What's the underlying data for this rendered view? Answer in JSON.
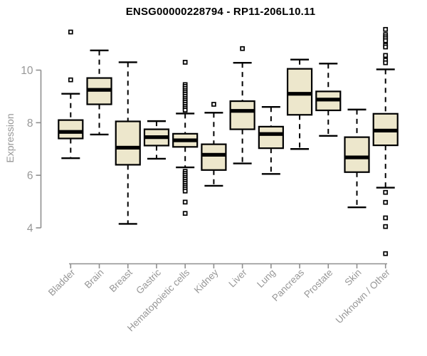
{
  "title": "ENSG00000228794 - RP11-206L10.11",
  "chart_data": {
    "type": "boxplot",
    "title": "ENSG00000228794 - RP11-206L10.11",
    "xlabel": "",
    "ylabel": "Expression",
    "y_ticks": [
      4,
      6,
      8,
      10
    ],
    "ylim": [
      2.9,
      11.6
    ],
    "grid": false,
    "legend": null,
    "categories": [
      "Bladder",
      "Brain",
      "Breast",
      "Gastric",
      "Hematopoietic cells",
      "Kidney",
      "Liver",
      "Lung",
      "Pancreas",
      "Prostate",
      "Skin",
      "Unknown / Other"
    ],
    "series": [
      {
        "category": "Bladder",
        "low": 6.65,
        "q1": 7.4,
        "median": 7.65,
        "q3": 8.1,
        "high": 9.1,
        "outliers": [
          9.63,
          11.45
        ]
      },
      {
        "category": "Brain",
        "low": 7.55,
        "q1": 8.7,
        "median": 9.25,
        "q3": 9.7,
        "high": 10.75,
        "outliers": []
      },
      {
        "category": "Breast",
        "low": 4.15,
        "q1": 6.4,
        "median": 7.05,
        "q3": 8.05,
        "high": 10.3,
        "outliers": []
      },
      {
        "category": "Gastric",
        "low": 6.63,
        "q1": 7.13,
        "median": 7.45,
        "q3": 7.75,
        "high": 8.06,
        "outliers": []
      },
      {
        "category": "Hematopoietic cells",
        "low": 6.3,
        "q1": 7.08,
        "median": 7.33,
        "q3": 7.58,
        "high": 8.35,
        "outliers": [
          10.3,
          9.45,
          9.38,
          9.3,
          9.22,
          9.15,
          9.08,
          9.0,
          8.92,
          8.85,
          8.78,
          8.7,
          8.62,
          8.55,
          8.48,
          6.15,
          6.07,
          6.0,
          5.92,
          5.85,
          5.77,
          5.7,
          5.62,
          5.55,
          5.48,
          5.4,
          4.98,
          4.55
        ]
      },
      {
        "category": "Kidney",
        "low": 5.6,
        "q1": 6.2,
        "median": 6.78,
        "q3": 7.18,
        "high": 8.38,
        "outliers": [
          8.7
        ]
      },
      {
        "category": "Liver",
        "low": 6.45,
        "q1": 7.75,
        "median": 8.45,
        "q3": 8.82,
        "high": 10.28,
        "outliers": [
          10.82
        ]
      },
      {
        "category": "Lung",
        "low": 6.05,
        "q1": 7.03,
        "median": 7.57,
        "q3": 7.85,
        "high": 8.6,
        "outliers": []
      },
      {
        "category": "Pancreas",
        "low": 7.0,
        "q1": 8.3,
        "median": 9.1,
        "q3": 10.05,
        "high": 10.4,
        "outliers": []
      },
      {
        "category": "Prostate",
        "low": 7.5,
        "q1": 8.47,
        "median": 8.88,
        "q3": 9.19,
        "high": 10.25,
        "outliers": []
      },
      {
        "category": "Skin",
        "low": 4.78,
        "q1": 6.12,
        "median": 6.68,
        "q3": 7.45,
        "high": 8.5,
        "outliers": []
      },
      {
        "category": "Unknown / Other",
        "low": 5.53,
        "q1": 7.14,
        "median": 7.7,
        "q3": 8.34,
        "high": 10.03,
        "outliers": [
          11.55,
          11.35,
          11.27,
          11.2,
          11.12,
          10.95,
          10.88,
          10.56,
          10.38,
          10.28,
          5.35,
          4.97,
          4.38,
          4.05,
          3.02
        ]
      }
    ],
    "style": {
      "box_fill": "#EDE7CC",
      "box_stroke": "#000000",
      "axis_color": "#8f8f8f",
      "tick_label_color": "#979797",
      "title_color": "#000000",
      "outlier_fill": "#ffffff"
    }
  }
}
